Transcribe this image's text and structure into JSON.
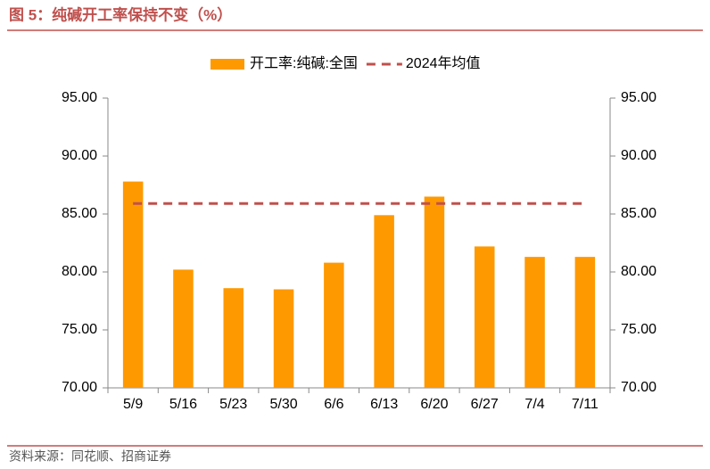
{
  "chart_data": {
    "type": "bar",
    "title": "图 5：纯碱开工率保持不变（%）",
    "source": "资料来源：同花顺、招商证券",
    "categories": [
      "5/9",
      "5/16",
      "5/23",
      "5/30",
      "6/6",
      "6/13",
      "6/20",
      "6/27",
      "7/4",
      "7/11"
    ],
    "series": [
      {
        "name": "开工率:纯碱:全国",
        "type": "bar",
        "color": "#ff9900",
        "values": [
          87.8,
          80.2,
          78.6,
          78.5,
          80.8,
          84.9,
          86.5,
          82.2,
          81.3,
          81.3
        ]
      },
      {
        "name": "2024年均值",
        "type": "line",
        "dashed": true,
        "color": "#c0504d",
        "values": [
          85.9,
          85.9,
          85.9,
          85.9,
          85.9,
          85.9,
          85.9,
          85.9,
          85.9,
          85.9
        ]
      }
    ],
    "ylim": [
      70,
      95
    ],
    "yticks": [
      {
        "value": 70,
        "label": "70.00"
      },
      {
        "value": 75,
        "label": "75.00"
      },
      {
        "value": 80,
        "label": "80.00"
      },
      {
        "value": 85,
        "label": "85.00"
      },
      {
        "value": 90,
        "label": "90.00"
      },
      {
        "value": 95,
        "label": "95.00"
      }
    ],
    "y2lim": [
      70,
      95
    ],
    "y2ticks": [
      {
        "value": 70,
        "label": "70.00"
      },
      {
        "value": 75,
        "label": "75.00"
      },
      {
        "value": 80,
        "label": "80.00"
      },
      {
        "value": 85,
        "label": "85.00"
      },
      {
        "value": 90,
        "label": "90.00"
      },
      {
        "value": 95,
        "label": "95.00"
      }
    ],
    "legend": "top"
  }
}
